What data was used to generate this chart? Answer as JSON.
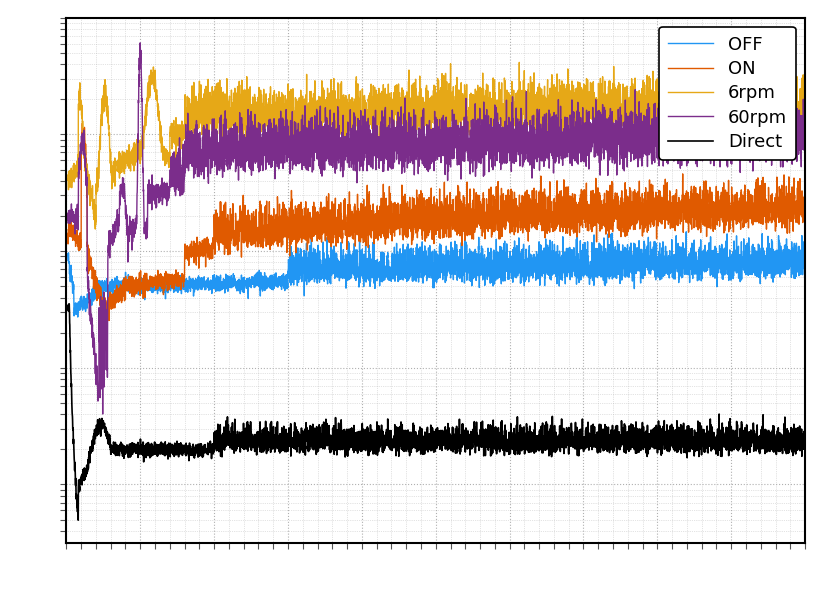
{
  "title": "",
  "xlabel": "",
  "ylabel": "",
  "legend_labels": [
    "OFF",
    "ON",
    "6rpm",
    "60rpm",
    "Direct"
  ],
  "line_colors": [
    "#2196F3",
    "#E05A00",
    "#E6A817",
    "#7B2D8B",
    "#000000"
  ],
  "line_widths": [
    1.0,
    1.0,
    1.0,
    1.0,
    1.2
  ],
  "background_color": "#ffffff",
  "grid_color": "#b0b0b0",
  "xlim": [
    0,
    500
  ],
  "figsize": [
    8.3,
    5.9
  ],
  "dpi": 100,
  "border_color": "#000000"
}
